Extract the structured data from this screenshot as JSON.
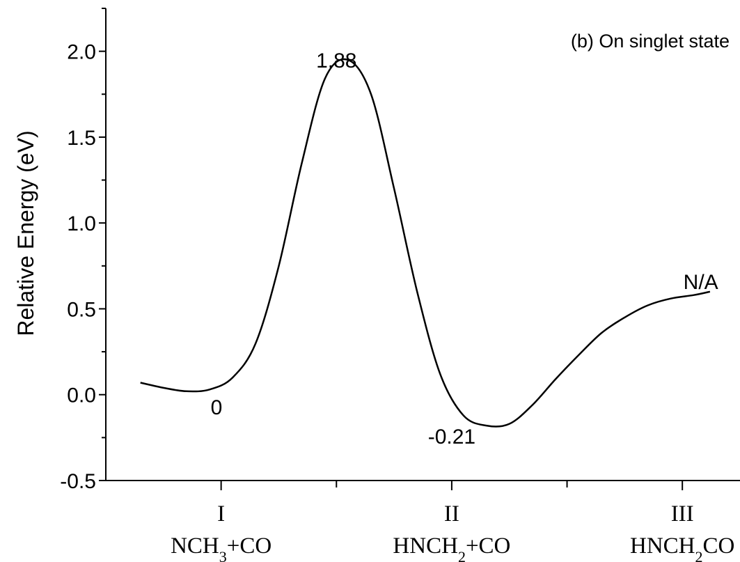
{
  "chart_data": {
    "type": "line",
    "title": "(b) On singlet state",
    "ylabel": "Relative Energy (eV)",
    "xlabel": "",
    "ylim": [
      -0.5,
      2.25
    ],
    "xlim": [
      0.5,
      3.25
    ],
    "yticks": [
      "-0.5",
      "0.0",
      "0.5",
      "1.0",
      "1.5",
      "2.0"
    ],
    "ytick_values": [
      -0.5,
      0.0,
      0.5,
      1.0,
      1.5,
      2.0
    ],
    "xticks": [
      {
        "x": 1,
        "roman": "I",
        "species": "NCH",
        "sub": "3",
        "rest": "+CO"
      },
      {
        "x": 2,
        "roman": "II",
        "species": "HNCH",
        "sub": "2",
        "rest": "+CO"
      },
      {
        "x": 3,
        "roman": "III",
        "species": "HNCH",
        "sub": "2",
        "rest": "CO"
      }
    ],
    "minor_xticks": [
      1.5,
      2.5
    ],
    "grid": false,
    "series": [
      {
        "x": [
          0.65,
          0.75,
          0.85,
          0.95,
          1.05,
          1.15,
          1.25,
          1.35,
          1.45,
          1.55,
          1.65,
          1.75,
          1.85,
          1.95,
          2.05,
          2.15,
          2.25,
          2.35,
          2.45,
          2.55,
          2.65,
          2.75,
          2.85,
          2.95,
          3.05,
          3.12
        ],
        "y": [
          0.07,
          0.04,
          0.02,
          0.03,
          0.1,
          0.3,
          0.75,
          1.35,
          1.84,
          1.95,
          1.75,
          1.2,
          0.6,
          0.12,
          -0.12,
          -0.18,
          -0.17,
          -0.06,
          0.09,
          0.23,
          0.36,
          0.45,
          0.52,
          0.56,
          0.58,
          0.6
        ]
      }
    ],
    "annotations": [
      {
        "text": "1.88",
        "x": 1.5,
        "y": 1.95
      },
      {
        "text": "0",
        "x": 0.98,
        "y": -0.07
      },
      {
        "text": "-0.21",
        "x": 2.0,
        "y": -0.24
      },
      {
        "text": "N/A",
        "x": 3.08,
        "y": 0.66
      }
    ]
  }
}
